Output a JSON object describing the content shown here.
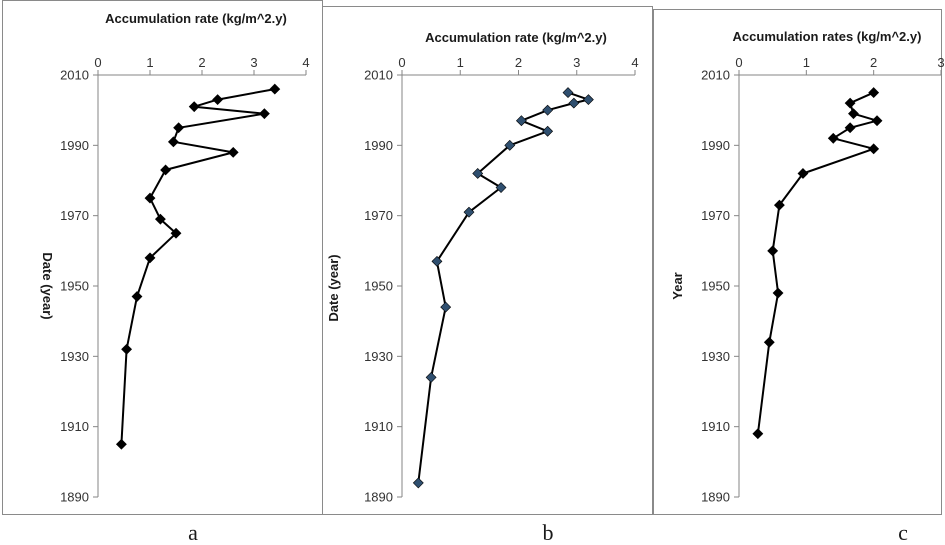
{
  "chart_data": [
    {
      "type": "line",
      "panel_label": "a",
      "xlabel": "Accumulation rate (kg/m^2.y)",
      "ylabel": "Date (year)",
      "xlim": [
        0,
        4
      ],
      "ylim": [
        1890,
        2010
      ],
      "x_ticks": [
        "0",
        "1",
        "2",
        "3",
        "4"
      ],
      "y_ticks": [
        "2010",
        "1990",
        "1970",
        "1950",
        "1930",
        "1910",
        "1890"
      ],
      "x_axis_position": "top",
      "grid": false,
      "marker": "diamond",
      "marker_color": "#000000",
      "line_color": "#000000",
      "points": [
        {
          "x": 3.4,
          "y": 2006
        },
        {
          "x": 2.3,
          "y": 2003
        },
        {
          "x": 1.85,
          "y": 2001
        },
        {
          "x": 3.2,
          "y": 1999
        },
        {
          "x": 1.55,
          "y": 1995
        },
        {
          "x": 1.45,
          "y": 1991
        },
        {
          "x": 2.6,
          "y": 1988
        },
        {
          "x": 1.3,
          "y": 1983
        },
        {
          "x": 1.0,
          "y": 1975
        },
        {
          "x": 1.2,
          "y": 1969
        },
        {
          "x": 1.5,
          "y": 1965
        },
        {
          "x": 1.0,
          "y": 1958
        },
        {
          "x": 0.75,
          "y": 1947
        },
        {
          "x": 0.55,
          "y": 1932
        },
        {
          "x": 0.45,
          "y": 1905
        }
      ]
    },
    {
      "type": "line",
      "panel_label": "b",
      "xlabel": "Accumulation rate (kg/m^2.y)",
      "ylabel": "Date (year)",
      "xlim": [
        0,
        4
      ],
      "ylim": [
        1890,
        2010
      ],
      "x_ticks": [
        "0",
        "1",
        "2",
        "3",
        "4"
      ],
      "y_ticks": [
        "2010",
        "1990",
        "1970",
        "1950",
        "1930",
        "1910",
        "1890"
      ],
      "x_axis_position": "top",
      "grid": false,
      "marker": "diamond",
      "marker_color": "#2f4f6f",
      "line_color": "#000000",
      "points": [
        {
          "x": 2.85,
          "y": 2005
        },
        {
          "x": 3.2,
          "y": 2003
        },
        {
          "x": 2.95,
          "y": 2002
        },
        {
          "x": 2.5,
          "y": 2000
        },
        {
          "x": 2.05,
          "y": 1997
        },
        {
          "x": 2.5,
          "y": 1994
        },
        {
          "x": 1.85,
          "y": 1990
        },
        {
          "x": 1.3,
          "y": 1982
        },
        {
          "x": 1.7,
          "y": 1978
        },
        {
          "x": 1.15,
          "y": 1971
        },
        {
          "x": 0.6,
          "y": 1957
        },
        {
          "x": 0.75,
          "y": 1944
        },
        {
          "x": 0.5,
          "y": 1924
        },
        {
          "x": 0.28,
          "y": 1894
        }
      ]
    },
    {
      "type": "line",
      "panel_label": "c",
      "xlabel": "Accumulation rates  (kg/m^2.y)",
      "ylabel": "Year",
      "xlim": [
        0,
        3
      ],
      "ylim": [
        1890,
        2010
      ],
      "x_ticks": [
        "0",
        "1",
        "2",
        "3"
      ],
      "y_ticks": [
        "2010",
        "1990",
        "1970",
        "1950",
        "1930",
        "1910",
        "1890"
      ],
      "x_axis_position": "top",
      "grid": false,
      "marker": "diamond",
      "marker_color": "#000000",
      "line_color": "#000000",
      "points": [
        {
          "x": 2.0,
          "y": 2005
        },
        {
          "x": 1.65,
          "y": 2002
        },
        {
          "x": 1.7,
          "y": 1999
        },
        {
          "x": 2.05,
          "y": 1997
        },
        {
          "x": 1.65,
          "y": 1995
        },
        {
          "x": 1.4,
          "y": 1992
        },
        {
          "x": 2.0,
          "y": 1989
        },
        {
          "x": 0.95,
          "y": 1982
        },
        {
          "x": 0.6,
          "y": 1973
        },
        {
          "x": 0.5,
          "y": 1960
        },
        {
          "x": 0.58,
          "y": 1948
        },
        {
          "x": 0.45,
          "y": 1934
        },
        {
          "x": 0.28,
          "y": 1908
        }
      ]
    }
  ]
}
